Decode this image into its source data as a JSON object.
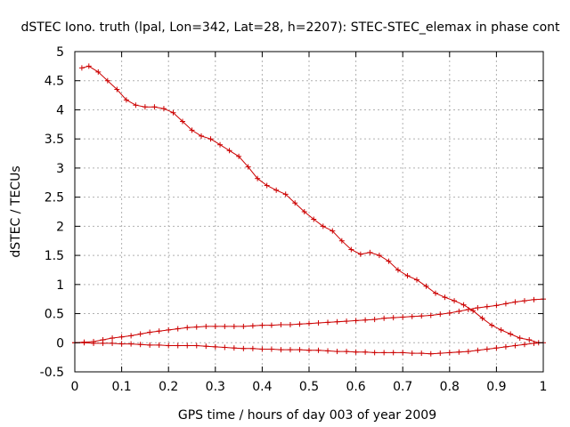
{
  "chart_data": {
    "type": "line",
    "title": "dSTEC Iono. truth (lpal, Lon=342, Lat=28, h=2207): STEC-STEC_elemax in phase cont",
    "xlabel": "GPS time / hours of day 003 of year 2009",
    "ylabel": "dSTEC  / TECUs",
    "xlim": [
      0,
      1
    ],
    "ylim": [
      -0.5,
      5
    ],
    "xticks": [
      "0",
      "0.1",
      "0.2",
      "0.3",
      "0.4",
      "0.5",
      "0.6",
      "0.7",
      "0.8",
      "0.9",
      "1"
    ],
    "yticks": [
      "-0.5",
      "0",
      "0.5",
      "1",
      "1.5",
      "2",
      "2.5",
      "3",
      "3.5",
      "4",
      "4.5",
      "5"
    ],
    "xtick_values": [
      0,
      0.1,
      0.2,
      0.3,
      0.4,
      0.5,
      0.6,
      0.7,
      0.8,
      0.9,
      1
    ],
    "ytick_values": [
      -0.5,
      0,
      0.5,
      1,
      1.5,
      2,
      2.5,
      3,
      3.5,
      4,
      4.5,
      5
    ],
    "grid": true,
    "marker": "plus",
    "color": "#cc0000",
    "series": [
      {
        "points": [
          [
            0.015,
            4.72
          ],
          [
            0.03,
            4.75
          ],
          [
            0.05,
            4.65
          ],
          [
            0.07,
            4.5
          ],
          [
            0.09,
            4.35
          ],
          [
            0.11,
            4.17
          ],
          [
            0.13,
            4.08
          ],
          [
            0.15,
            4.05
          ],
          [
            0.17,
            4.05
          ],
          [
            0.19,
            4.02
          ],
          [
            0.21,
            3.95
          ],
          [
            0.23,
            3.8
          ],
          [
            0.25,
            3.65
          ],
          [
            0.27,
            3.55
          ],
          [
            0.29,
            3.5
          ],
          [
            0.31,
            3.4
          ],
          [
            0.33,
            3.3
          ],
          [
            0.35,
            3.2
          ],
          [
            0.37,
            3.02
          ],
          [
            0.39,
            2.82
          ],
          [
            0.41,
            2.7
          ],
          [
            0.43,
            2.62
          ],
          [
            0.45,
            2.55
          ],
          [
            0.47,
            2.4
          ],
          [
            0.49,
            2.25
          ],
          [
            0.51,
            2.12
          ],
          [
            0.53,
            2.0
          ],
          [
            0.55,
            1.92
          ],
          [
            0.57,
            1.75
          ],
          [
            0.59,
            1.6
          ],
          [
            0.61,
            1.52
          ],
          [
            0.63,
            1.55
          ],
          [
            0.65,
            1.5
          ],
          [
            0.67,
            1.4
          ],
          [
            0.69,
            1.25
          ],
          [
            0.71,
            1.15
          ],
          [
            0.73,
            1.08
          ],
          [
            0.75,
            0.97
          ],
          [
            0.77,
            0.85
          ],
          [
            0.79,
            0.78
          ],
          [
            0.81,
            0.72
          ],
          [
            0.83,
            0.65
          ],
          [
            0.85,
            0.55
          ],
          [
            0.87,
            0.42
          ],
          [
            0.89,
            0.3
          ],
          [
            0.91,
            0.22
          ],
          [
            0.93,
            0.15
          ],
          [
            0.95,
            0.08
          ],
          [
            0.97,
            0.05
          ],
          [
            0.99,
            0.0
          ]
        ]
      },
      {
        "points": [
          [
            0.0,
            0.0
          ],
          [
            0.02,
            0.01
          ],
          [
            0.04,
            0.02
          ],
          [
            0.06,
            0.05
          ],
          [
            0.08,
            0.08
          ],
          [
            0.1,
            0.1
          ],
          [
            0.12,
            0.12
          ],
          [
            0.14,
            0.15
          ],
          [
            0.16,
            0.18
          ],
          [
            0.18,
            0.2
          ],
          [
            0.2,
            0.22
          ],
          [
            0.22,
            0.24
          ],
          [
            0.24,
            0.26
          ],
          [
            0.26,
            0.27
          ],
          [
            0.28,
            0.28
          ],
          [
            0.3,
            0.28
          ],
          [
            0.32,
            0.28
          ],
          [
            0.34,
            0.28
          ],
          [
            0.36,
            0.28
          ],
          [
            0.38,
            0.29
          ],
          [
            0.4,
            0.3
          ],
          [
            0.42,
            0.3
          ],
          [
            0.44,
            0.31
          ],
          [
            0.46,
            0.31
          ],
          [
            0.48,
            0.32
          ],
          [
            0.5,
            0.33
          ],
          [
            0.52,
            0.34
          ],
          [
            0.54,
            0.35
          ],
          [
            0.56,
            0.36
          ],
          [
            0.58,
            0.37
          ],
          [
            0.6,
            0.38
          ],
          [
            0.62,
            0.39
          ],
          [
            0.64,
            0.4
          ],
          [
            0.66,
            0.42
          ],
          [
            0.68,
            0.43
          ],
          [
            0.7,
            0.44
          ],
          [
            0.72,
            0.45
          ],
          [
            0.74,
            0.46
          ],
          [
            0.76,
            0.47
          ],
          [
            0.78,
            0.49
          ],
          [
            0.8,
            0.51
          ],
          [
            0.82,
            0.54
          ],
          [
            0.84,
            0.57
          ],
          [
            0.86,
            0.6
          ],
          [
            0.88,
            0.62
          ],
          [
            0.9,
            0.64
          ],
          [
            0.92,
            0.67
          ],
          [
            0.94,
            0.7
          ],
          [
            0.96,
            0.72
          ],
          [
            0.98,
            0.74
          ],
          [
            1.0,
            0.75
          ]
        ]
      },
      {
        "points": [
          [
            0.0,
            0.0
          ],
          [
            0.02,
            0.0
          ],
          [
            0.04,
            -0.01
          ],
          [
            0.06,
            -0.01
          ],
          [
            0.08,
            -0.01
          ],
          [
            0.1,
            -0.02
          ],
          [
            0.12,
            -0.02
          ],
          [
            0.14,
            -0.03
          ],
          [
            0.16,
            -0.04
          ],
          [
            0.18,
            -0.04
          ],
          [
            0.2,
            -0.05
          ],
          [
            0.22,
            -0.05
          ],
          [
            0.24,
            -0.05
          ],
          [
            0.26,
            -0.05
          ],
          [
            0.28,
            -0.06
          ],
          [
            0.3,
            -0.07
          ],
          [
            0.32,
            -0.08
          ],
          [
            0.34,
            -0.09
          ],
          [
            0.36,
            -0.1
          ],
          [
            0.38,
            -0.1
          ],
          [
            0.4,
            -0.11
          ],
          [
            0.42,
            -0.11
          ],
          [
            0.44,
            -0.12
          ],
          [
            0.46,
            -0.12
          ],
          [
            0.48,
            -0.12
          ],
          [
            0.5,
            -0.13
          ],
          [
            0.52,
            -0.13
          ],
          [
            0.54,
            -0.14
          ],
          [
            0.56,
            -0.15
          ],
          [
            0.58,
            -0.15
          ],
          [
            0.6,
            -0.16
          ],
          [
            0.62,
            -0.16
          ],
          [
            0.64,
            -0.17
          ],
          [
            0.66,
            -0.17
          ],
          [
            0.68,
            -0.17
          ],
          [
            0.7,
            -0.17
          ],
          [
            0.72,
            -0.18
          ],
          [
            0.74,
            -0.18
          ],
          [
            0.76,
            -0.19
          ],
          [
            0.78,
            -0.18
          ],
          [
            0.8,
            -0.17
          ],
          [
            0.82,
            -0.16
          ],
          [
            0.84,
            -0.15
          ],
          [
            0.86,
            -0.13
          ],
          [
            0.88,
            -0.11
          ],
          [
            0.9,
            -0.09
          ],
          [
            0.92,
            -0.07
          ],
          [
            0.94,
            -0.05
          ],
          [
            0.96,
            -0.03
          ],
          [
            0.98,
            -0.01
          ],
          [
            1.0,
            0.0
          ]
        ]
      }
    ]
  }
}
